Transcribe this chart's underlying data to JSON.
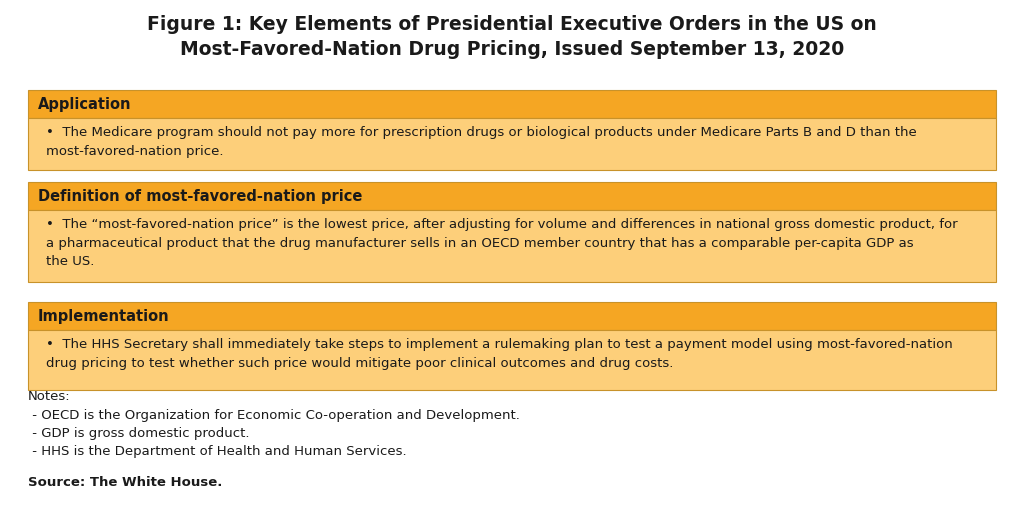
{
  "title": "Figure 1: Key Elements of Presidential Executive Orders in the US on\nMost-Favored-Nation Drug Pricing, Issued September 13, 2020",
  "title_fontsize": 13.5,
  "background_color": "#ffffff",
  "header_bg_color": "#F5A623",
  "content_bg_color": "#FDCF7A",
  "border_color": "#C8922A",
  "sections": [
    {
      "header": "Application",
      "content": "The Medicare program should not pay more for prescription drugs or biological products under Medicare Parts B and D than the\nmost-favored-nation price."
    },
    {
      "header": "Definition of most-favored-nation price",
      "content": "The “most-favored-nation price” is the lowest price, after adjusting for volume and differences in national gross domestic product, for\na pharmaceutical product that the drug manufacturer sells in an OECD member country that has a comparable per-capita GDP as\nthe US."
    },
    {
      "header": "Implementation",
      "content": "The HHS Secretary shall immediately take steps to implement a rulemaking plan to test a payment model using most-favored-nation\ndrug pricing to test whether such price would mitigate poor clinical outcomes and drug costs."
    }
  ],
  "notes_lines": [
    "Notes:",
    " - OECD is the Organization for Economic Co-operation and Development.",
    " - GDP is gross domestic product.",
    " - HHS is the Department of Health and Human Services."
  ],
  "source_text": "Source: The White House.",
  "text_color": "#1a1a1a",
  "header_text_color": "#1a1a1a",
  "notes_fontsize": 9.5,
  "source_fontsize": 9.5,
  "header_fontsize": 10.5,
  "content_fontsize": 9.5
}
